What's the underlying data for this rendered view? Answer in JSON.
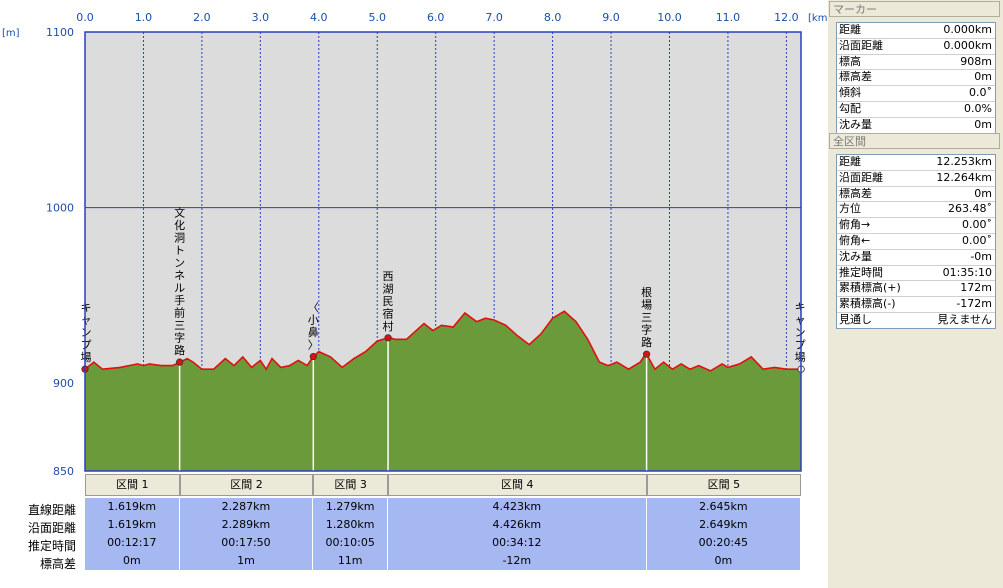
{
  "chart_data": {
    "type": "area",
    "x_unit": "[km]",
    "y_unit": "[m]",
    "xlim": [
      0.0,
      12.25
    ],
    "ylim": [
      850,
      1100
    ],
    "x_ticks": [
      "0.0",
      "1.0",
      "2.0",
      "3.0",
      "4.0",
      "5.0",
      "6.0",
      "7.0",
      "8.0",
      "9.0",
      "10.0",
      "11.0",
      "12.0"
    ],
    "y_ticks": [
      "850",
      "900",
      "1000",
      "1100"
    ],
    "profile": {
      "x": [
        0.0,
        0.15,
        0.3,
        0.6,
        0.9,
        1.0,
        1.1,
        1.3,
        1.5,
        1.62,
        1.75,
        1.85,
        2.0,
        2.2,
        2.4,
        2.55,
        2.7,
        2.85,
        3.0,
        3.1,
        3.2,
        3.35,
        3.5,
        3.65,
        3.8,
        3.9,
        4.0,
        4.2,
        4.4,
        4.6,
        4.8,
        5.0,
        5.2,
        5.3,
        5.5,
        5.8,
        5.95,
        6.1,
        6.3,
        6.5,
        6.7,
        6.85,
        7.0,
        7.2,
        7.4,
        7.6,
        7.8,
        8.0,
        8.2,
        8.4,
        8.6,
        8.8,
        8.95,
        9.1,
        9.3,
        9.5,
        9.6,
        9.75,
        9.9,
        10.05,
        10.2,
        10.35,
        10.5,
        10.7,
        10.9,
        11.0,
        11.2,
        11.4,
        11.6,
        11.8,
        12.0,
        12.25
      ],
      "y": [
        908,
        912,
        908,
        909,
        911,
        910,
        911,
        910,
        910,
        912,
        914,
        912,
        908,
        908,
        914,
        910,
        915,
        909,
        913,
        908,
        914,
        909,
        910,
        913,
        910,
        915,
        918,
        915,
        909,
        914,
        918,
        924,
        926,
        925,
        925,
        934,
        930,
        933,
        932,
        940,
        935,
        937,
        936,
        933,
        927,
        922,
        928,
        937,
        941,
        935,
        925,
        912,
        910,
        912,
        908,
        912,
        917,
        908,
        912,
        908,
        911,
        908,
        910,
        907,
        911,
        909,
        911,
        915,
        908,
        909,
        908,
        908
      ]
    },
    "waypoints": [
      {
        "x": 0.0,
        "label": "キャンプ場"
      },
      {
        "x": 1.619,
        "label": "文化洞トンネル手前三字路"
      },
      {
        "x": 3.906,
        "label": "〈小鼻〉"
      },
      {
        "x": 5.185,
        "label": "西湖民宿村"
      },
      {
        "x": 9.608,
        "label": "根場三字路"
      },
      {
        "x": 12.253,
        "label": "キャンプ場"
      }
    ],
    "colors": {
      "fill": "#6b9a3a",
      "line": "#e01010",
      "plot_bg": "#dcdcdc",
      "grid": "#2a3fc0"
    }
  },
  "sections": {
    "row_labels": [
      "直線距離",
      "沿面距離",
      "推定時間",
      "標高差"
    ],
    "items": [
      {
        "name": "区間 1",
        "straight": "1.619km",
        "surface": "1.619km",
        "time": "00:12:17",
        "elev": "0m"
      },
      {
        "name": "区間 2",
        "straight": "2.287km",
        "surface": "2.289km",
        "time": "00:17:50",
        "elev": "1m"
      },
      {
        "name": "区間 3",
        "straight": "1.279km",
        "surface": "1.280km",
        "time": "00:10:05",
        "elev": "11m"
      },
      {
        "name": "区間 4",
        "straight": "4.423km",
        "surface": "4.426km",
        "time": "00:34:12",
        "elev": "-12m"
      },
      {
        "name": "区間 5",
        "straight": "2.645km",
        "surface": "2.649km",
        "time": "00:20:45",
        "elev": "0m"
      }
    ]
  },
  "marker": {
    "title": "マーカー",
    "rows": [
      {
        "label": "距離",
        "value": "0.000km"
      },
      {
        "label": "沿面距離",
        "value": "0.000km"
      },
      {
        "label": "標高",
        "value": "908m"
      },
      {
        "label": "標高差",
        "value": "0m"
      },
      {
        "label": "傾斜",
        "value": "0.0˚"
      },
      {
        "label": "勾配",
        "value": "0.0%"
      },
      {
        "label": "沈み量",
        "value": "0m"
      }
    ]
  },
  "total": {
    "title": "全区間",
    "rows": [
      {
        "label": "距離",
        "value": "12.253km"
      },
      {
        "label": "沿面距離",
        "value": "12.264km"
      },
      {
        "label": "標高差",
        "value": "0m"
      },
      {
        "label": "方位",
        "value": "263.48˚"
      },
      {
        "label": "俯角→",
        "value": "0.00˚"
      },
      {
        "label": "俯角←",
        "value": "0.00˚"
      },
      {
        "label": "沈み量",
        "value": "-0m"
      },
      {
        "label": "推定時間",
        "value": "01:35:10"
      },
      {
        "label": "累積標高(+)",
        "value": "172m"
      },
      {
        "label": "累積標高(-)",
        "value": "-172m"
      },
      {
        "label": "見通し",
        "value": "見えません"
      }
    ]
  }
}
